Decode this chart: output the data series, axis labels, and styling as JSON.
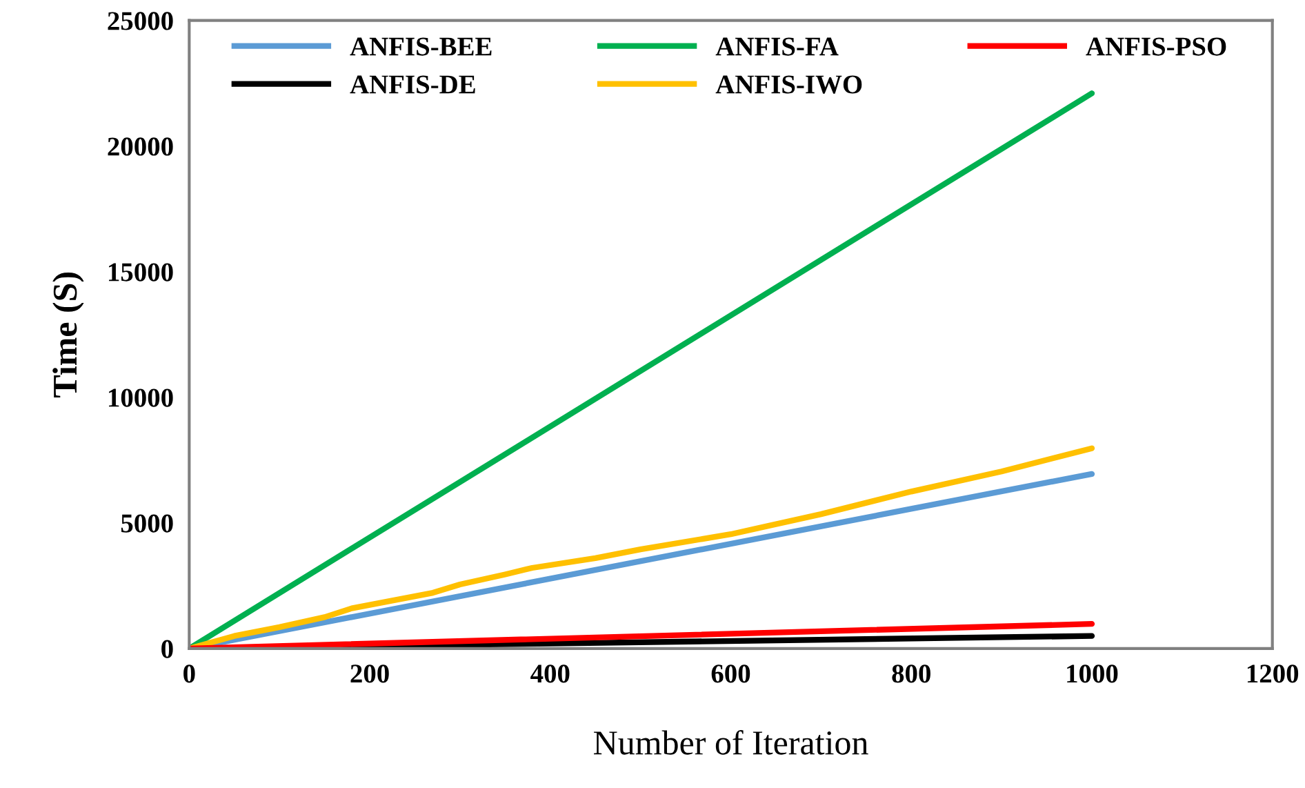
{
  "chart_data": {
    "type": "line",
    "xlabel": "Number of Iteration",
    "ylabel": "Time (S)",
    "xlim": [
      0,
      1200
    ],
    "xticks": [
      0,
      200,
      400,
      600,
      800,
      1000,
      1200
    ],
    "ylim": [
      0,
      25000
    ],
    "yticks": [
      0,
      5000,
      10000,
      15000,
      20000,
      25000
    ],
    "grid": false,
    "legend": "top",
    "marker": "none",
    "line_style": "solid",
    "series": [
      {
        "name": "ANFIS-BEE",
        "color": "#5b9bd5",
        "x": [
          0,
          1000
        ],
        "values": [
          0,
          6950
        ]
      },
      {
        "name": "ANFIS-DE",
        "color": "#000000",
        "x": [
          0,
          1000
        ],
        "values": [
          0,
          500
        ]
      },
      {
        "name": "ANFIS-FA",
        "color": "#00b050",
        "x": [
          0,
          1000
        ],
        "values": [
          0,
          22100
        ]
      },
      {
        "name": "ANFIS-IWO",
        "color": "#ffc000",
        "x": [
          0,
          50,
          100,
          150,
          180,
          270,
          300,
          350,
          380,
          450,
          500,
          600,
          700,
          800,
          900,
          1000
        ],
        "values": [
          0,
          500,
          850,
          1250,
          1600,
          2220,
          2550,
          2950,
          3210,
          3600,
          3950,
          4550,
          5350,
          6250,
          7050,
          7970
        ]
      },
      {
        "name": "ANFIS-PSO",
        "color": "#ff0000",
        "x": [
          0,
          1000
        ],
        "values": [
          0,
          980
        ]
      }
    ]
  }
}
